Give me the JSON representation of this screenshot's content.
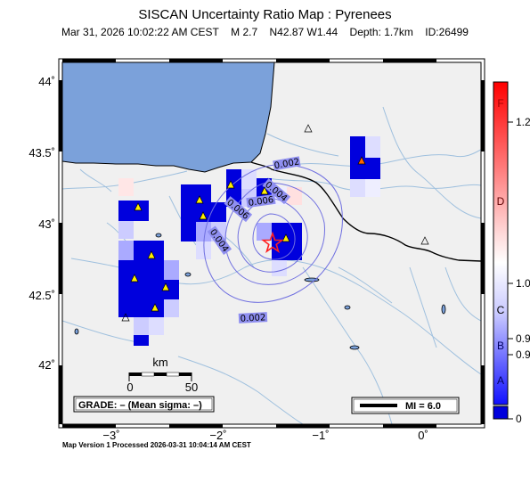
{
  "header": {
    "title": "SISCAN Uncertainty Ratio Map : Pyrenees",
    "datetime": "Mar 31, 2026 10:02:22 AM CEST",
    "magnitude": "M 2.7",
    "location": "N42.87 W1.44",
    "depth": "Depth: 1.7km",
    "event_id": "ID:26499"
  },
  "axes": {
    "lat_labels": [
      "44˚",
      "43.5˚",
      "43˚",
      "42.5˚",
      "42˚"
    ],
    "lon_labels": [
      "−3˚",
      "−2˚",
      "−1˚",
      "0˚"
    ]
  },
  "contours": [
    "0.002",
    "0.004",
    "0.006",
    "0.004",
    "0.006",
    "0.002"
  ],
  "scale": {
    "unit": "km",
    "tick0": "0",
    "tick50": "50"
  },
  "grade_box": "GRADE: – (Mean sigma: –)",
  "mi_legend": "MI = 6.0",
  "colorbar": {
    "grade_letters": [
      "F",
      "D",
      "C",
      "B",
      "A"
    ],
    "values": [
      "1.2",
      "1.0",
      "0.9",
      "0.9",
      "0"
    ],
    "colors": {
      "top": "#ff0000",
      "mid": "#ffffff",
      "bottom": "#0000ff"
    }
  },
  "colors": {
    "ocean": "#7ba1da",
    "land": "#f0f0f0",
    "epicenter": "#ff0000",
    "station": "#ffee00"
  },
  "footer": "Map Version 1 Processed 2026-03-31 10:04:14 AM CEST"
}
